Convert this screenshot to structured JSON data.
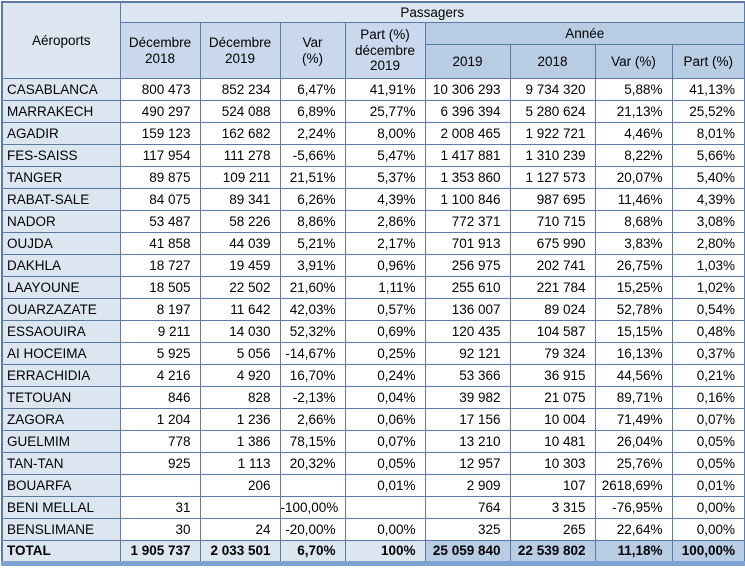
{
  "colors": {
    "cell_light": "#dce6f1",
    "cell_header_left": "#c9d8ec",
    "cell_medium": "#b8cce4",
    "border_color": "#5b7aa6",
    "band": "#7fa3d1",
    "text": "#000000"
  },
  "table": {
    "corner_header": "Aéroports",
    "group_header": "Passagers",
    "annee_header": "Année",
    "columns": [
      "Décembre 2018",
      "Décembre 2019",
      "Var\n(%)",
      "Part (%) décembre 2019"
    ],
    "annee_columns": [
      "2019",
      "2018",
      "Var (%)",
      "Part (%)"
    ],
    "rows": [
      {
        "name": "CASABLANCA",
        "cells": [
          "800 473",
          "852 234",
          "6,47%",
          "41,91%",
          "10 306 293",
          "9 734 320",
          "5,88%",
          "41,13%"
        ]
      },
      {
        "name": "MARRAKECH",
        "cells": [
          "490 297",
          "524 088",
          "6,89%",
          "25,77%",
          "6 396 394",
          "5 280 624",
          "21,13%",
          "25,52%"
        ]
      },
      {
        "name": "AGADIR",
        "cells": [
          "159 123",
          "162 682",
          "2,24%",
          "8,00%",
          "2 008 465",
          "1 922 721",
          "4,46%",
          "8,01%"
        ]
      },
      {
        "name": "FES-SAISS",
        "cells": [
          "117 954",
          "111 278",
          "-5,66%",
          "5,47%",
          "1 417 881",
          "1 310 239",
          "8,22%",
          "5,66%"
        ]
      },
      {
        "name": "TANGER",
        "cells": [
          "89 875",
          "109 211",
          "21,51%",
          "5,37%",
          "1 353 860",
          "1 127 573",
          "20,07%",
          "5,40%"
        ]
      },
      {
        "name": "RABAT-SALE",
        "cells": [
          "84 075",
          "89 341",
          "6,26%",
          "4,39%",
          "1 100 846",
          "987 695",
          "11,46%",
          "4,39%"
        ]
      },
      {
        "name": "NADOR",
        "cells": [
          "53 487",
          "58 226",
          "8,86%",
          "2,86%",
          "772 371",
          "710 715",
          "8,68%",
          "3,08%"
        ]
      },
      {
        "name": "OUJDA",
        "cells": [
          "41 858",
          "44 039",
          "5,21%",
          "2,17%",
          "701 913",
          "675 990",
          "3,83%",
          "2,80%"
        ]
      },
      {
        "name": "DAKHLA",
        "cells": [
          "18 727",
          "19 459",
          "3,91%",
          "0,96%",
          "256 975",
          "202 741",
          "26,75%",
          "1,03%"
        ]
      },
      {
        "name": "LAAYOUNE",
        "cells": [
          "18 505",
          "22 502",
          "21,60%",
          "1,11%",
          "255 610",
          "221 784",
          "15,25%",
          "1,02%"
        ]
      },
      {
        "name": "OUARZAZATE",
        "cells": [
          "8 197",
          "11 642",
          "42,03%",
          "0,57%",
          "136 007",
          "89 024",
          "52,78%",
          "0,54%"
        ]
      },
      {
        "name": "ESSAOUIRA",
        "cells": [
          "9 211",
          "14 030",
          "52,32%",
          "0,69%",
          "120 435",
          "104 587",
          "15,15%",
          "0,48%"
        ]
      },
      {
        "name": "AI HOCEIMA",
        "cells": [
          "5 925",
          "5 056",
          "-14,67%",
          "0,25%",
          "92 121",
          "79 324",
          "16,13%",
          "0,37%"
        ]
      },
      {
        "name": "ERRACHIDIA",
        "cells": [
          "4 216",
          "4 920",
          "16,70%",
          "0,24%",
          "53 366",
          "36 915",
          "44,56%",
          "0,21%"
        ]
      },
      {
        "name": "TETOUAN",
        "cells": [
          "846",
          "828",
          "-2,13%",
          "0,04%",
          "39 982",
          "21 075",
          "89,71%",
          "0,16%"
        ]
      },
      {
        "name": "ZAGORA",
        "cells": [
          "1 204",
          "1 236",
          "2,66%",
          "0,06%",
          "17 156",
          "10 004",
          "71,49%",
          "0,07%"
        ]
      },
      {
        "name": "GUELMIM",
        "cells": [
          "778",
          "1 386",
          "78,15%",
          "0,07%",
          "13 210",
          "10 481",
          "26,04%",
          "0,05%"
        ]
      },
      {
        "name": "TAN-TAN",
        "cells": [
          "925",
          "1 113",
          "20,32%",
          "0,05%",
          "12 957",
          "10 303",
          "25,76%",
          "0,05%"
        ]
      },
      {
        "name": "BOUARFA",
        "cells": [
          "",
          "206",
          "",
          "0,01%",
          "2 909",
          "107",
          "2618,69%",
          "0,01%"
        ]
      },
      {
        "name": "BENI MELLAL",
        "cells": [
          "31",
          "",
          "-100,00%",
          "",
          "764",
          "3 315",
          "-76,95%",
          "0,00%"
        ]
      },
      {
        "name": "BENSLIMANE",
        "cells": [
          "30",
          "24",
          "-20,00%",
          "0,00%",
          "325",
          "265",
          "22,64%",
          "0,00%"
        ]
      }
    ],
    "total": {
      "label": "TOTAL",
      "cells": [
        "1 905 737",
        "2 033 501",
        "6,70%",
        "100%",
        "25 059 840",
        "22 539 802",
        "11,18%",
        "100,00%"
      ]
    }
  }
}
